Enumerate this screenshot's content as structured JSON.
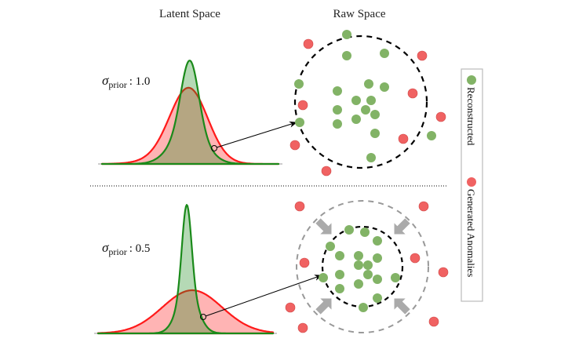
{
  "headers": {
    "latent": "Latent Space",
    "raw": "Raw Space"
  },
  "panels": [
    {
      "sigma_symbol": "σ",
      "sigma_sub": "prior",
      "sigma_value": ": 1.0"
    },
    {
      "sigma_symbol": "σ",
      "sigma_sub": "prior",
      "sigma_value": ": 0.5"
    }
  ],
  "legend": {
    "items": [
      {
        "label": "Reconstructed",
        "color": "#82b366"
      },
      {
        "label": "Generated Anomalies",
        "color": "#f06262"
      }
    ]
  },
  "colors": {
    "reconstructed": "#82b366",
    "anomaly": "#f06262",
    "latent_green_line": "#1a8a1a",
    "latent_red_line": "#ff1a1a",
    "shrink_arrow": "#aaaaaa"
  }
}
